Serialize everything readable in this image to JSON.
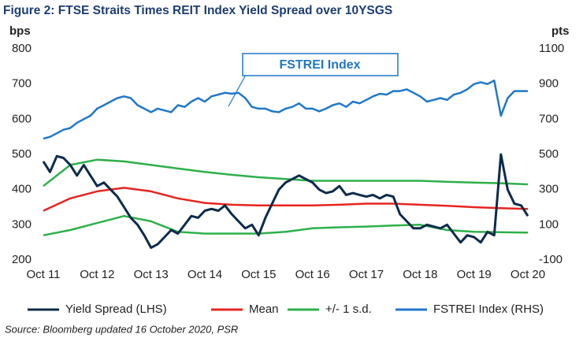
{
  "chart_data": {
    "type": "line",
    "title": "Figure 2: FTSE Straits Times REIT Index Yield Spread over 10YSGS",
    "ylabel": "bps",
    "y2label": "pts",
    "source": "Source: Bloomberg updated 16 October 2020, PSR",
    "annotation": "FSTREI Index",
    "xlim": [
      0,
      9
    ],
    "xticks": [
      {
        "value": 0,
        "label": "Oct 11"
      },
      {
        "value": 1,
        "label": "Oct 12"
      },
      {
        "value": 2,
        "label": "Oct 13"
      },
      {
        "value": 3,
        "label": "Oct 14"
      },
      {
        "value": 4,
        "label": "Oct 15"
      },
      {
        "value": 5,
        "label": "Oct 16"
      },
      {
        "value": 6,
        "label": "Oct 17"
      },
      {
        "value": 7,
        "label": "Oct 18"
      },
      {
        "value": 8,
        "label": "Oct 19"
      },
      {
        "value": 9,
        "label": "Oct 20"
      }
    ],
    "ylim": [
      200,
      800
    ],
    "yticks": [
      200,
      300,
      400,
      500,
      600,
      700,
      800
    ],
    "y2lim": [
      -100,
      1100
    ],
    "y2ticks": [
      -100,
      100,
      300,
      500,
      700,
      900,
      1100
    ],
    "series": [
      {
        "name": "Yield Spread (LHS)",
        "color": "#0d2b4b",
        "width": 3,
        "x": [
          0,
          0.125,
          0.25,
          0.375,
          0.5,
          0.625,
          0.75,
          0.875,
          1,
          1.125,
          1.25,
          1.375,
          1.5,
          1.625,
          1.75,
          1.875,
          2,
          2.125,
          2.25,
          2.375,
          2.5,
          2.625,
          2.75,
          2.875,
          3,
          3.125,
          3.25,
          3.375,
          3.5,
          3.625,
          3.75,
          3.875,
          4,
          4.125,
          4.25,
          4.375,
          4.5,
          4.625,
          4.75,
          4.875,
          5,
          5.125,
          5.25,
          5.375,
          5.5,
          5.625,
          5.75,
          5.875,
          6,
          6.125,
          6.25,
          6.375,
          6.5,
          6.625,
          6.75,
          6.875,
          7,
          7.125,
          7.25,
          7.375,
          7.5,
          7.625,
          7.75,
          7.875,
          8,
          8.125,
          8.25,
          8.375,
          8.5,
          8.625,
          8.75,
          8.875,
          9
        ],
        "values": [
          480,
          450,
          495,
          490,
          470,
          440,
          470,
          440,
          410,
          420,
          400,
          380,
          350,
          320,
          300,
          270,
          235,
          245,
          265,
          285,
          275,
          300,
          325,
          320,
          340,
          345,
          340,
          355,
          330,
          310,
          290,
          300,
          270,
          320,
          360,
          400,
          420,
          430,
          440,
          430,
          420,
          400,
          390,
          395,
          410,
          385,
          390,
          385,
          380,
          385,
          375,
          385,
          380,
          330,
          310,
          290,
          290,
          300,
          295,
          290,
          300,
          275,
          250,
          270,
          265,
          250,
          280,
          270,
          500,
          400,
          360,
          355,
          325
        ]
      },
      {
        "name": "Mean",
        "color": "#e52521",
        "width": 2.5,
        "x": [
          0,
          0.5,
          1,
          1.5,
          2,
          2.5,
          3,
          3.5,
          4,
          4.5,
          5,
          5.5,
          6,
          6.5,
          7,
          7.5,
          8,
          8.5,
          9
        ],
        "values": [
          340,
          375,
          395,
          405,
          395,
          375,
          362,
          357,
          355,
          355,
          355,
          357,
          360,
          360,
          357,
          354,
          350,
          347,
          345
        ]
      },
      {
        "name": "+/- 1 s.d.",
        "color": "#2db04a",
        "width": 2.5,
        "x": [
          0,
          0.5,
          1,
          1.5,
          2,
          2.5,
          3,
          3.5,
          4,
          4.5,
          5,
          5.5,
          6,
          6.5,
          7,
          7.5,
          8,
          8.5,
          9
        ],
        "values": [
          410,
          470,
          485,
          480,
          470,
          460,
          450,
          442,
          435,
          430,
          425,
          425,
          425,
          425,
          425,
          422,
          420,
          418,
          415
        ],
        "lower": [
          270,
          285,
          305,
          325,
          310,
          280,
          275,
          275,
          275,
          280,
          290,
          293,
          295,
          298,
          300,
          285,
          280,
          279,
          278
        ]
      },
      {
        "name": "FSTREI Index (RHS)",
        "color": "#1f77c8",
        "width": 2.5,
        "axis": "y2",
        "x": [
          0,
          0.125,
          0.25,
          0.375,
          0.5,
          0.625,
          0.75,
          0.875,
          1,
          1.125,
          1.25,
          1.375,
          1.5,
          1.625,
          1.75,
          1.875,
          2,
          2.125,
          2.25,
          2.375,
          2.5,
          2.625,
          2.75,
          2.875,
          3,
          3.125,
          3.25,
          3.375,
          3.5,
          3.625,
          3.75,
          3.875,
          4,
          4.125,
          4.25,
          4.375,
          4.5,
          4.625,
          4.75,
          4.875,
          5,
          5.125,
          5.25,
          5.375,
          5.5,
          5.625,
          5.75,
          5.875,
          6,
          6.125,
          6.25,
          6.375,
          6.5,
          6.625,
          6.75,
          6.875,
          7,
          7.125,
          7.25,
          7.375,
          7.5,
          7.625,
          7.75,
          7.875,
          8,
          8.125,
          8.25,
          8.375,
          8.5,
          8.625,
          8.75,
          8.875,
          9
        ],
        "values": [
          590,
          600,
          620,
          640,
          650,
          680,
          700,
          720,
          760,
          780,
          800,
          820,
          830,
          820,
          780,
          760,
          740,
          760,
          750,
          740,
          780,
          770,
          800,
          820,
          800,
          830,
          840,
          850,
          845,
          850,
          820,
          770,
          760,
          760,
          745,
          740,
          760,
          770,
          790,
          760,
          760,
          745,
          760,
          780,
          790,
          770,
          800,
          790,
          810,
          830,
          845,
          840,
          860,
          860,
          870,
          850,
          830,
          800,
          810,
          820,
          810,
          840,
          850,
          870,
          900,
          910,
          900,
          920,
          720,
          820,
          860,
          860,
          860
        ]
      }
    ]
  }
}
